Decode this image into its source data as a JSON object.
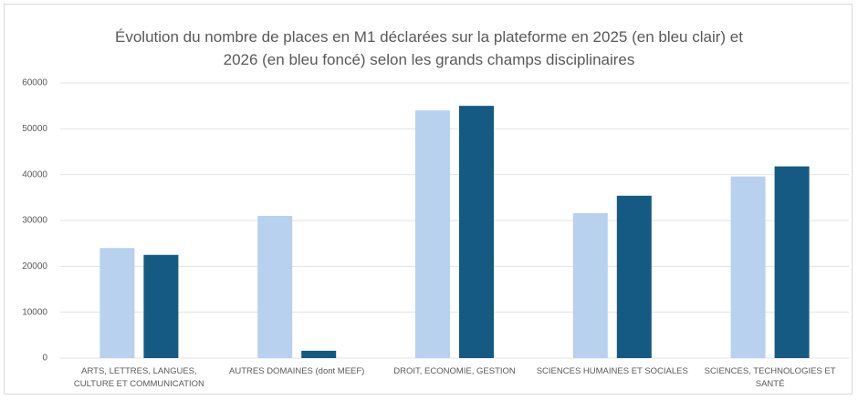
{
  "chart_data": {
    "type": "bar",
    "title": "Évolution du nombre de places en M1 déclarées sur la plateforme en 2025 (en bleu clair) et 2026 (en bleu foncé) selon les grands champs disciplinaires",
    "categories": [
      "ARTS, LETTRES, LANGUES, CULTURE ET COMMUNICATION",
      "AUTRES DOMAINES (dont MEEF)",
      "DROIT, ECONOMIE, GESTION",
      "SCIENCES HUMAINES ET SOCIALES",
      "SCIENCES, TECHNOLOGIES ET SANTÉ"
    ],
    "series": [
      {
        "color": "#b7d1ee",
        "values": [
          24000,
          31000,
          54000,
          31600,
          39600
        ]
      },
      {
        "color": "#145a82",
        "values": [
          22500,
          1600,
          55000,
          35400,
          41800
        ]
      }
    ],
    "ylim": [
      0,
      60000
    ],
    "yticks": [
      0,
      10000,
      20000,
      30000,
      40000,
      50000,
      60000
    ],
    "grid": true
  }
}
